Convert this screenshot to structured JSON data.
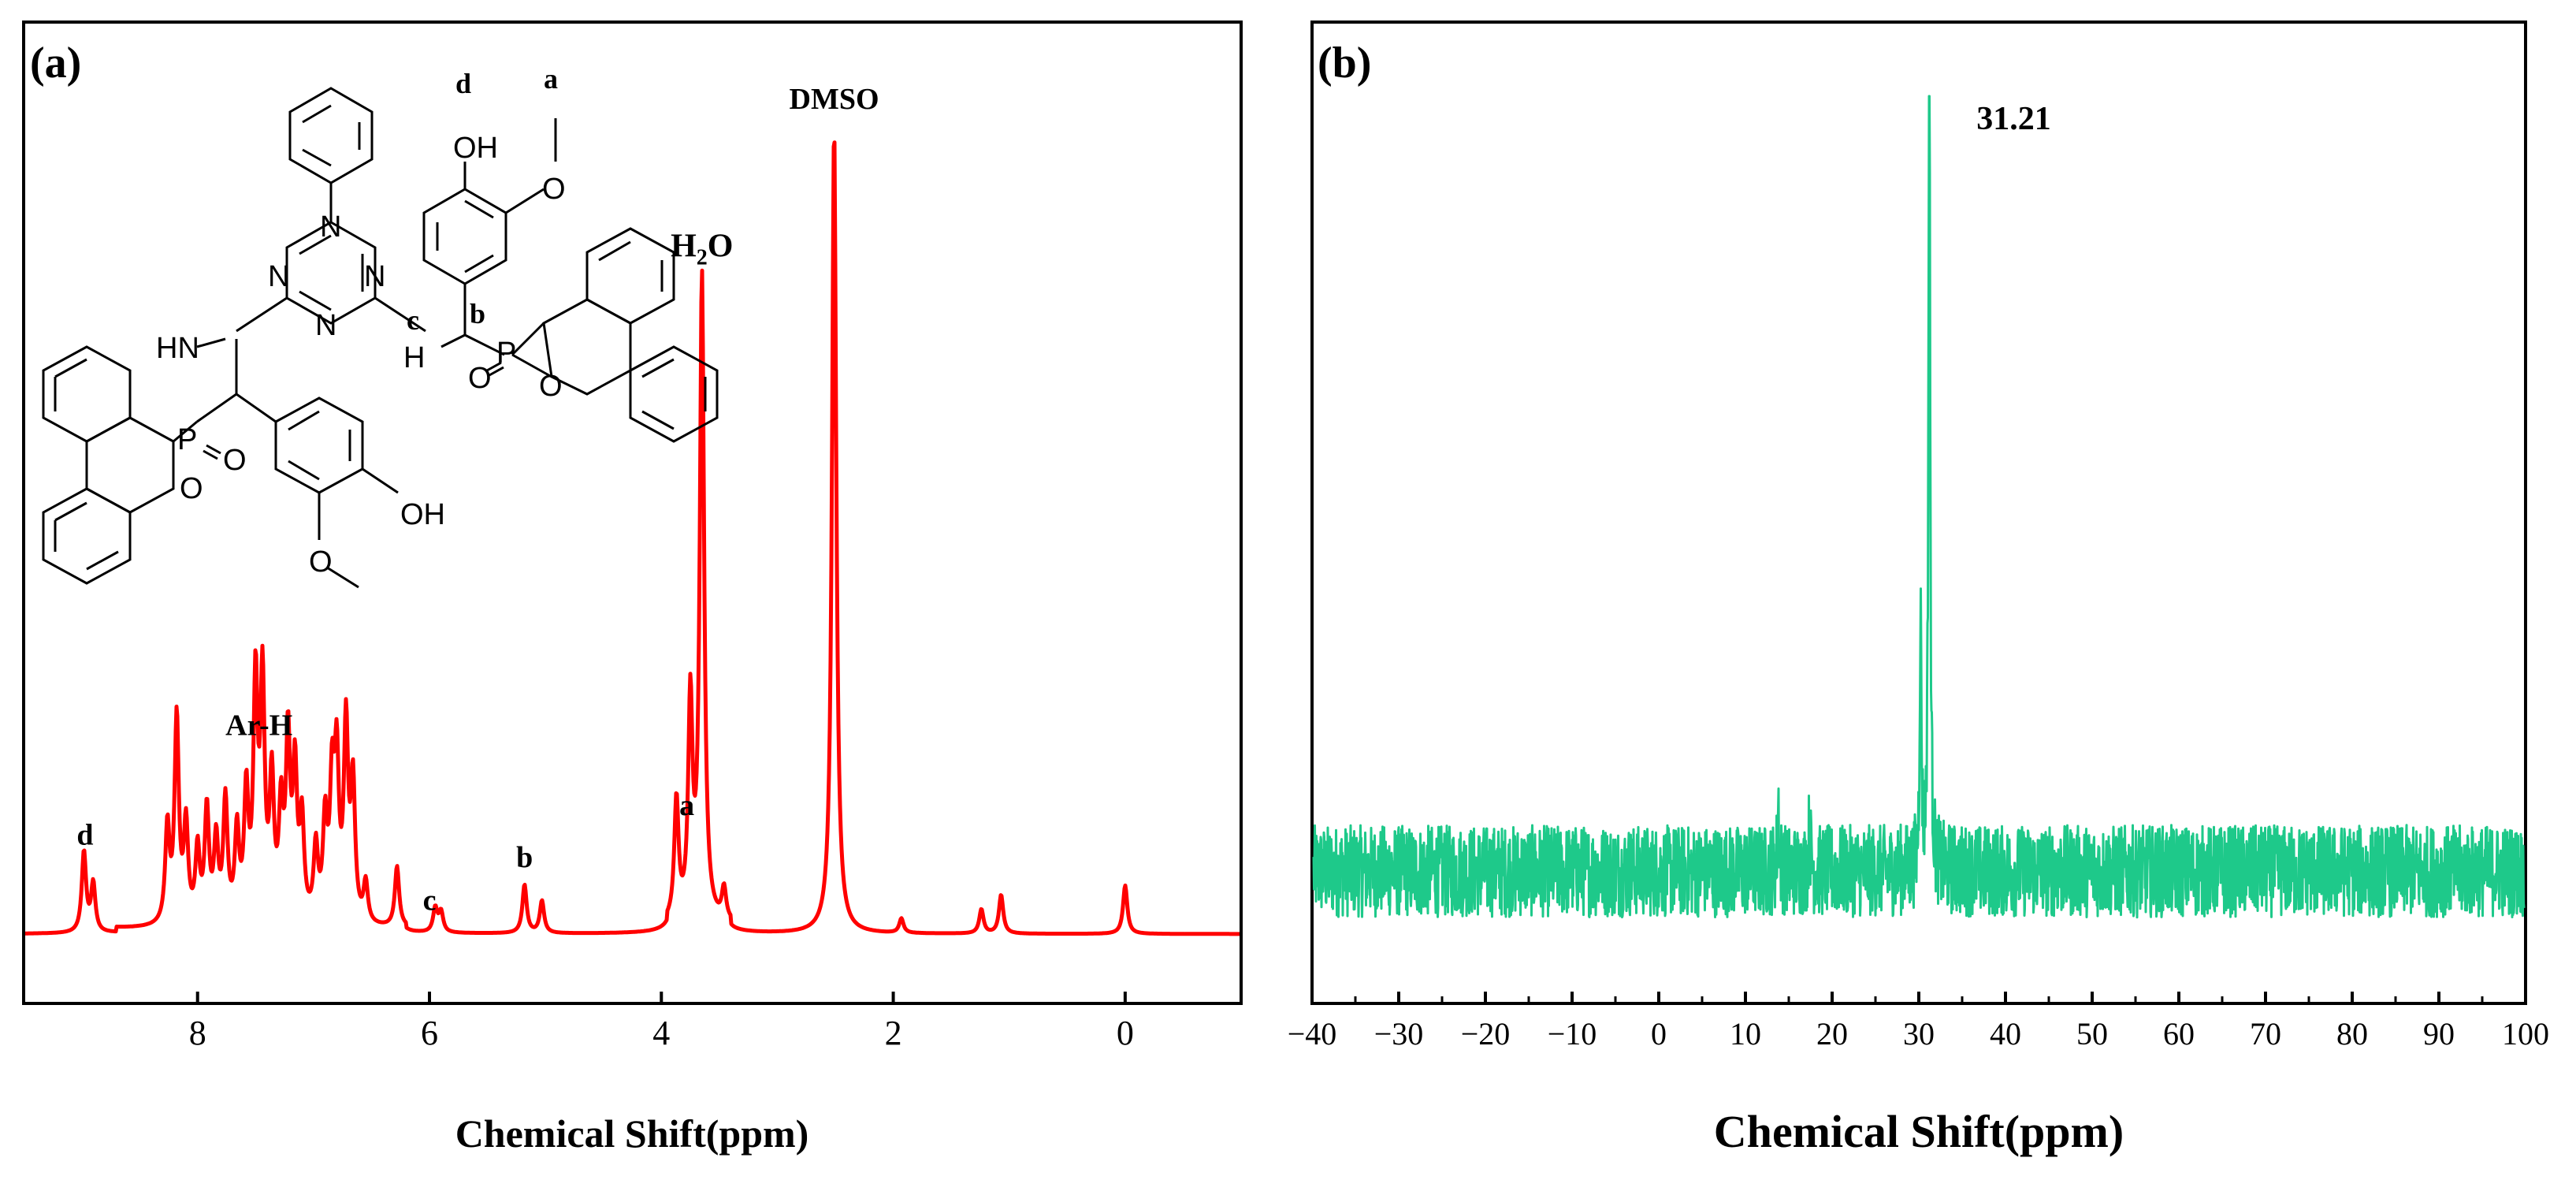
{
  "chart_data": [
    {
      "panel": "(a)",
      "type": "line",
      "subtype": "1H NMR spectrum",
      "xlabel": "Chemical Shift(ppm)",
      "ylabel": "",
      "x_reversed": true,
      "xlim": [
        9.5,
        -1.0
      ],
      "ylim": [
        0,
        1.0
      ],
      "x_ticks": [
        8,
        6,
        4,
        2,
        0
      ],
      "series_color": "#ff0000",
      "peaks": [
        {
          "ppm": 8.98,
          "height": 0.1
        },
        {
          "ppm": 8.9,
          "height": 0.06
        },
        {
          "ppm": 8.26,
          "height": 0.12
        },
        {
          "ppm": 8.18,
          "height": 0.255
        },
        {
          "ppm": 8.1,
          "height": 0.12
        },
        {
          "ppm": 8.0,
          "height": 0.09
        },
        {
          "ppm": 7.92,
          "height": 0.14
        },
        {
          "ppm": 7.84,
          "height": 0.1
        },
        {
          "ppm": 7.76,
          "height": 0.15
        },
        {
          "ppm": 7.66,
          "height": 0.11
        },
        {
          "ppm": 7.58,
          "height": 0.155
        },
        {
          "ppm": 7.5,
          "height": 0.29
        },
        {
          "ppm": 7.44,
          "height": 0.29
        },
        {
          "ppm": 7.36,
          "height": 0.17
        },
        {
          "ppm": 7.28,
          "height": 0.13
        },
        {
          "ppm": 7.22,
          "height": 0.22
        },
        {
          "ppm": 7.16,
          "height": 0.18
        },
        {
          "ppm": 7.1,
          "height": 0.12
        },
        {
          "ppm": 6.98,
          "height": 0.09
        },
        {
          "ppm": 6.9,
          "height": 0.12
        },
        {
          "ppm": 6.84,
          "height": 0.16
        },
        {
          "ppm": 6.8,
          "height": 0.19
        },
        {
          "ppm": 6.72,
          "height": 0.24
        },
        {
          "ppm": 6.66,
          "height": 0.17
        },
        {
          "ppm": 6.55,
          "height": 0.05
        },
        {
          "ppm": 6.28,
          "height": 0.075
        },
        {
          "ppm": 5.95,
          "height": 0.03
        },
        {
          "ppm": 5.9,
          "height": 0.025
        },
        {
          "ppm": 5.18,
          "height": 0.06
        },
        {
          "ppm": 5.03,
          "height": 0.04
        },
        {
          "ppm": 3.87,
          "height": 0.15
        },
        {
          "ppm": 3.75,
          "height": 0.27
        },
        {
          "ppm": 3.65,
          "height": 0.8
        },
        {
          "ppm": 3.46,
          "height": 0.04
        },
        {
          "ppm": 2.51,
          "height": 1.0
        },
        {
          "ppm": 1.93,
          "height": 0.018
        },
        {
          "ppm": 1.24,
          "height": 0.03
        },
        {
          "ppm": 1.07,
          "height": 0.048
        },
        {
          "ppm": 0.0,
          "height": 0.06
        }
      ],
      "annotations": [
        {
          "text": "d",
          "ppm": 8.97
        },
        {
          "text": "Ar-H",
          "ppm": 7.47
        },
        {
          "text": "c",
          "ppm": 6.0
        },
        {
          "text": "b",
          "ppm": 5.18
        },
        {
          "text": "a",
          "ppm": 3.78
        },
        {
          "text": "DMSO",
          "ppm": 2.51
        }
      ],
      "water_label": {
        "main": "H",
        "sub": "2",
        "tail": "O",
        "ppm": 3.65
      }
    },
    {
      "panel": "(b)",
      "type": "line",
      "subtype": "31P NMR spectrum",
      "xlabel": "Chemical Shift(ppm)",
      "ylabel": "",
      "xlim": [
        -40,
        100
      ],
      "ylim": [
        0,
        1.0
      ],
      "x_ticks": [
        -40,
        -30,
        -20,
        -10,
        0,
        10,
        20,
        30,
        40,
        50,
        60,
        70,
        80,
        90,
        100
      ],
      "series_color": "#1ec98a",
      "baseline": 0.075,
      "noise_amplitude": 0.055,
      "peaks": [
        {
          "ppm": 31.21,
          "height": 1.0
        },
        {
          "ppm": 30.2,
          "height": 0.3
        },
        {
          "ppm": 13.8,
          "height": 0.08
        },
        {
          "ppm": 17.4,
          "height": 0.06
        }
      ],
      "peak_label": "31.21"
    }
  ],
  "structure": {
    "atoms": [
      "OH",
      "O",
      "N",
      "N",
      "N",
      "HN",
      "N",
      "H",
      "P",
      "O",
      "O",
      "P",
      "O",
      "O",
      "OH",
      "O"
    ],
    "site_labels": [
      "d",
      "a",
      "c",
      "b"
    ]
  }
}
